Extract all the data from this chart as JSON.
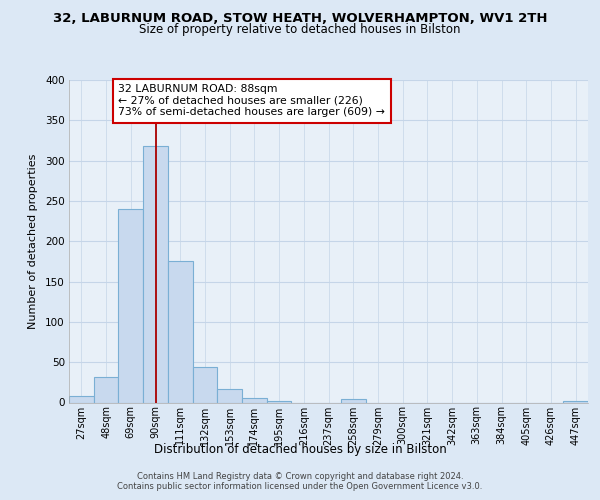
{
  "title_line1": "32, LABURNUM ROAD, STOW HEATH, WOLVERHAMPTON, WV1 2TH",
  "title_line2": "Size of property relative to detached houses in Bilston",
  "xlabel": "Distribution of detached houses by size in Bilston",
  "ylabel": "Number of detached properties",
  "bin_labels": [
    "27sqm",
    "48sqm",
    "69sqm",
    "90sqm",
    "111sqm",
    "132sqm",
    "153sqm",
    "174sqm",
    "195sqm",
    "216sqm",
    "237sqm",
    "258sqm",
    "279sqm",
    "300sqm",
    "321sqm",
    "342sqm",
    "363sqm",
    "384sqm",
    "405sqm",
    "426sqm",
    "447sqm"
  ],
  "bar_heights": [
    8,
    32,
    240,
    318,
    175,
    44,
    17,
    6,
    2,
    0,
    0,
    4,
    0,
    0,
    0,
    0,
    0,
    0,
    0,
    0,
    2
  ],
  "bar_color": "#c8d9ee",
  "bar_edge_color": "#7aafd4",
  "vline_x": 3,
  "vline_color": "#aa0000",
  "annotation_text": "32 LABURNUM ROAD: 88sqm\n← 27% of detached houses are smaller (226)\n73% of semi-detached houses are larger (609) →",
  "annotation_box_color": "#ffffff",
  "annotation_box_edge": "#cc0000",
  "ylim": [
    0,
    400
  ],
  "yticks": [
    0,
    50,
    100,
    150,
    200,
    250,
    300,
    350,
    400
  ],
  "footer_line1": "Contains HM Land Registry data © Crown copyright and database right 2024.",
  "footer_line2": "Contains public sector information licensed under the Open Government Licence v3.0.",
  "bg_color": "#dce8f5",
  "plot_bg_color": "#e8f0f8",
  "grid_color": "#c5d5e8"
}
